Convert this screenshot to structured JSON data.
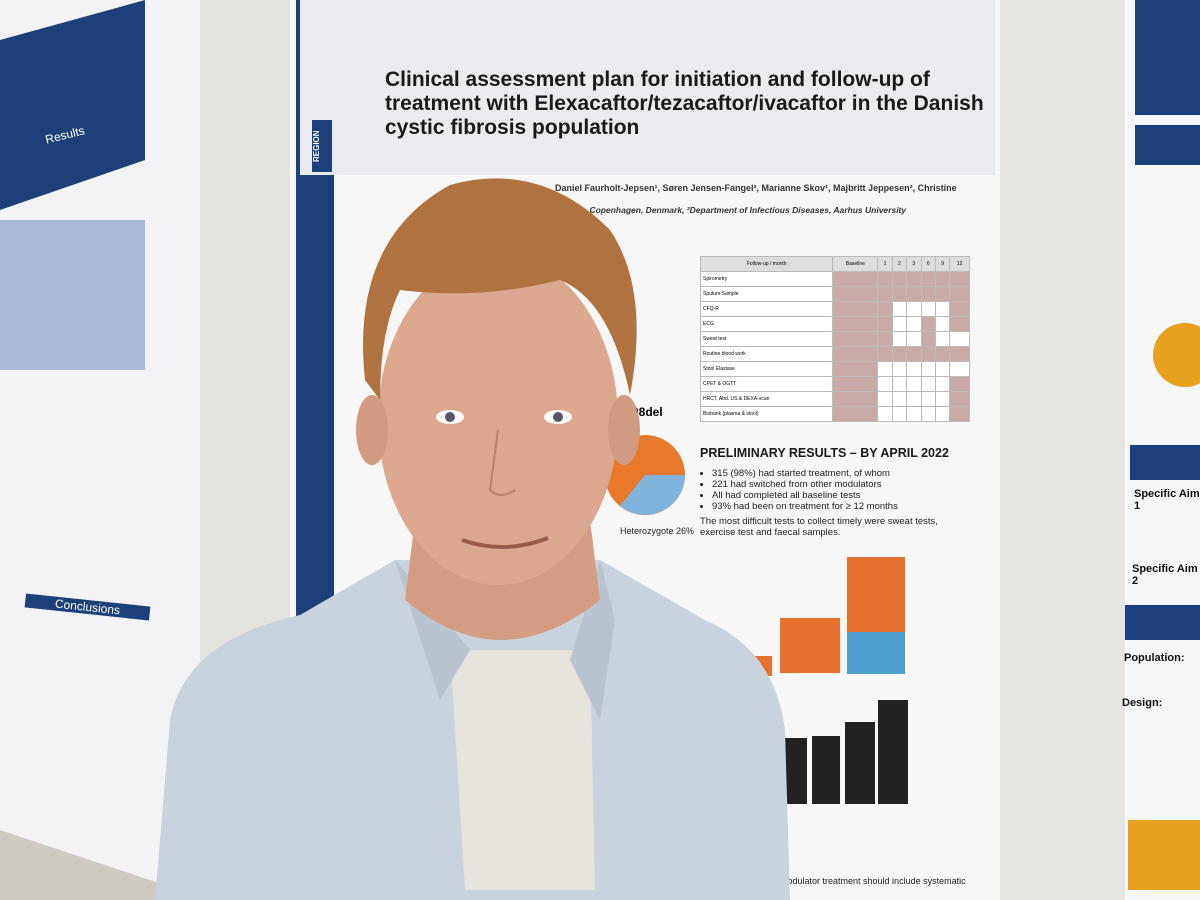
{
  "main_poster": {
    "logo_text": "REGION",
    "title": "Clinical assessment plan for initiation and follow-up of treatment with Elexacaftor/tezacaftor/ivacaftor in the Danish cystic fibrosis population",
    "authors": "Daniel Faurholt-Jepsen¹, Søren Jensen-Fangel², Marianne Skov¹, Majbritt Jeppesen², Christine",
    "affiliations": "spitalet, Copenhagen, Denmark, ²Department of Infectious Diseases, Aarhus University",
    "table": {
      "header": [
        "Follow-up / month",
        "Baseline",
        "1",
        "2",
        "3",
        "6",
        "9",
        "12"
      ],
      "rows": [
        "Spirometry",
        "Sputum Sample",
        "CFQ-R",
        "ECG",
        "Sweat test",
        "Routine blood work",
        "Stool Elastase",
        "CPET & OGTT",
        "HRCT, Abd. US & DEXA-scan",
        "Biobank (plasma & stool)"
      ]
    },
    "results_heading": "PRELIMINARY RESULTS – BY APRIL 2022",
    "results_bullets": [
      "315 (98%) had started treatment, of whom",
      "221 had switched from other modulators",
      "All had completed all baseline tests",
      "93% had been on treatment for ≥ 12 months"
    ],
    "results_note": "The most difficult tests to collect timely were sweat tests, exercise test and faecal samples.",
    "pie_heading": "08del",
    "pie_label": "Heterozygote 26%",
    "footer_text": "modulator treatment should include systematic"
  },
  "left_poster": {
    "results": "Results",
    "conclusions": "Conclusions"
  },
  "right_poster": {
    "specific_aim_1": "Specific Aim 1",
    "specific_aim_2": "Specific Aim 2",
    "population": "Population:",
    "design": "Design:"
  }
}
